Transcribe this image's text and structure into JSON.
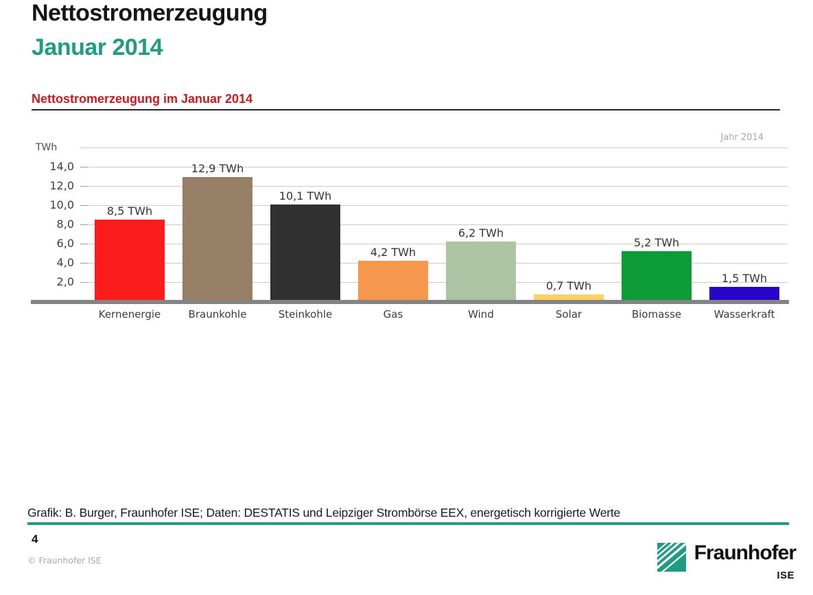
{
  "header": {
    "title": "Nettostromerzeugung",
    "subtitle": "Januar 2014"
  },
  "chart": {
    "heading": "Nettostromerzeugung im Januar 2014",
    "corner_label": "Jahr 2014"
  },
  "chart_data": {
    "type": "bar",
    "title": "Nettostromerzeugung im Januar 2014",
    "xlabel": "",
    "ylabel": "TWh",
    "ylim": [
      0,
      16
    ],
    "grid": true,
    "gridline_values": [
      16,
      14,
      12,
      10,
      8,
      6,
      4,
      2
    ],
    "yticks": [
      {
        "value": 14,
        "label": "14,0"
      },
      {
        "value": 12,
        "label": "12,0"
      },
      {
        "value": 10,
        "label": "10,0"
      },
      {
        "value": 8,
        "label": "8,0"
      },
      {
        "value": 6,
        "label": "6,0"
      },
      {
        "value": 4,
        "label": "4,0"
      },
      {
        "value": 2,
        "label": "2,0"
      }
    ],
    "categories": [
      "Kernenergie",
      "Braunkohle",
      "Steinkohle",
      "Gas",
      "Wind",
      "Solar",
      "Biomasse",
      "Wasserkraft"
    ],
    "values": [
      8.5,
      12.9,
      10.1,
      4.2,
      6.2,
      0.7,
      5.2,
      1.5
    ],
    "bar_labels": [
      "8,5 TWh",
      "12,9 TWh",
      "10,1 TWh",
      "4,2 TWh",
      "6,2 TWh",
      "0,7 TWh",
      "5,2 TWh",
      "1,5 TWh"
    ],
    "bar_colors": [
      "#fb1d1d",
      "#967f66",
      "#313030",
      "#f6974e",
      "#abc5a2",
      "#fbd263",
      "#0d9b38",
      "#2605c9"
    ]
  },
  "footer": {
    "attribution": "Grafik: B. Burger, Fraunhofer ISE; Daten: DESTATIS und Leipziger Strombörse EEX, energetisch korrigierte Werte",
    "page_number": "4",
    "copyright": "© Fraunhofer ISE",
    "logo_text": "Fraunhofer",
    "logo_subtext": "ISE",
    "logo_color": "#1f9c82"
  }
}
